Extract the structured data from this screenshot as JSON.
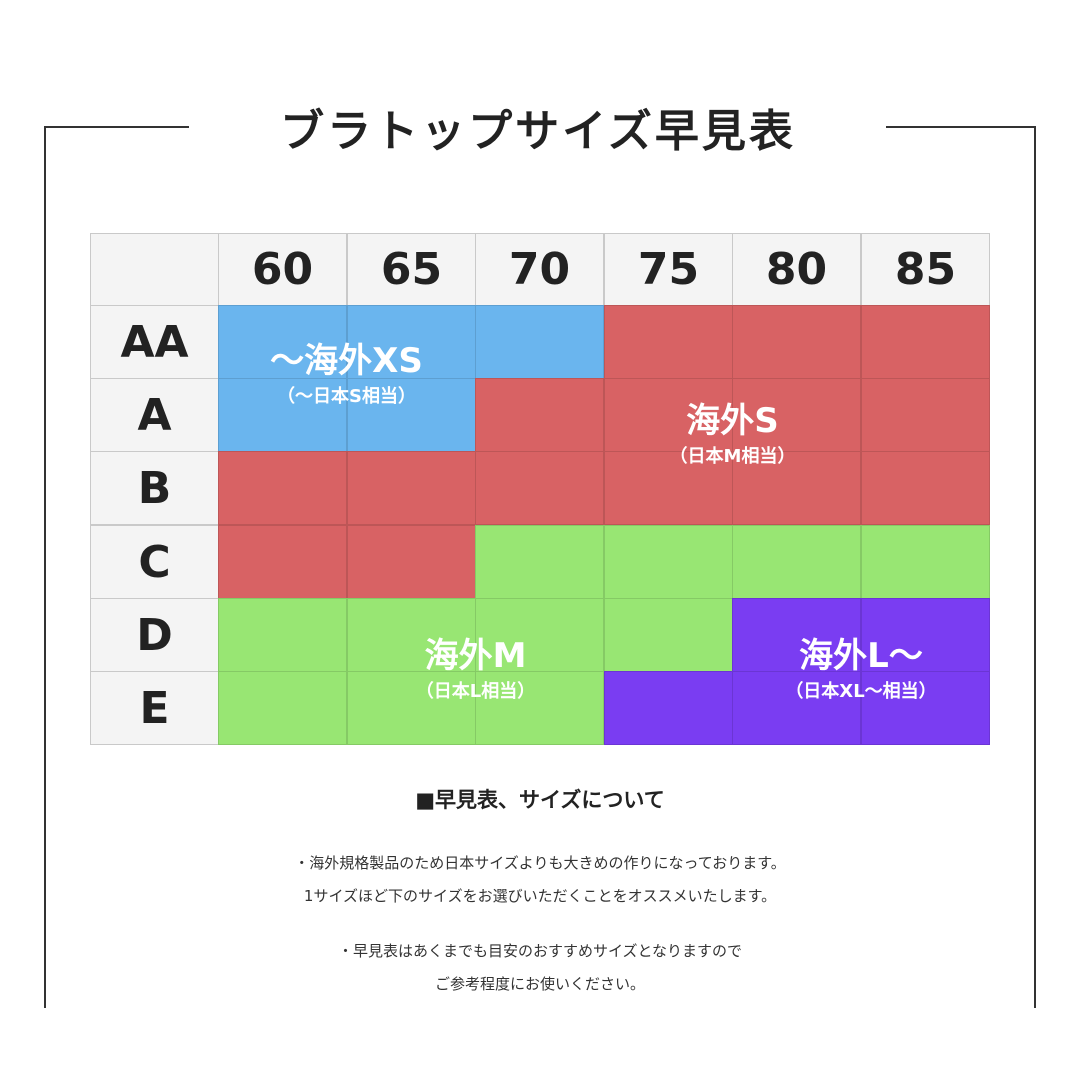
{
  "title": "ブラトップサイズ早見表",
  "columns": [
    "60",
    "65",
    "70",
    "75",
    "80",
    "85"
  ],
  "rows": [
    "AA",
    "A",
    "B",
    "C",
    "D",
    "E"
  ],
  "cells": [
    [
      "blue",
      "blue",
      "blue",
      "red",
      "red",
      "red"
    ],
    [
      "blue",
      "blue",
      "red",
      "red",
      "red",
      "red"
    ],
    [
      "red",
      "red",
      "red",
      "red",
      "red",
      "red"
    ],
    [
      "red",
      "red",
      "green",
      "green",
      "green",
      "green"
    ],
    [
      "green",
      "green",
      "green",
      "green",
      "purple",
      "purple"
    ],
    [
      "green",
      "green",
      "green",
      "purple",
      "purple",
      "purple"
    ]
  ],
  "colors": {
    "blue": "#6ab5ee",
    "red": "#d86264",
    "green": "#98e673",
    "purple": "#7a3df2"
  },
  "regions": {
    "xs": {
      "label": "～海外XS",
      "sub": "（～日本S相当）"
    },
    "s": {
      "label": "海外S",
      "sub": "（日本M相当）"
    },
    "m": {
      "label": "海外M",
      "sub": "（日本L相当）"
    },
    "l": {
      "label": "海外L～",
      "sub": "（日本XL～相当）"
    }
  },
  "notes": {
    "heading": "■早見表、サイズについて",
    "line1": "・海外規格製品のため日本サイズよりも大きめの作りになっております。",
    "line2": "1サイズほど下のサイズをお選びいただくことをオススメいたします。",
    "line3": "・早見表はあくまでも目安のおすすめサイズとなりますので",
    "line4": "ご参考程度にお使いください。"
  }
}
